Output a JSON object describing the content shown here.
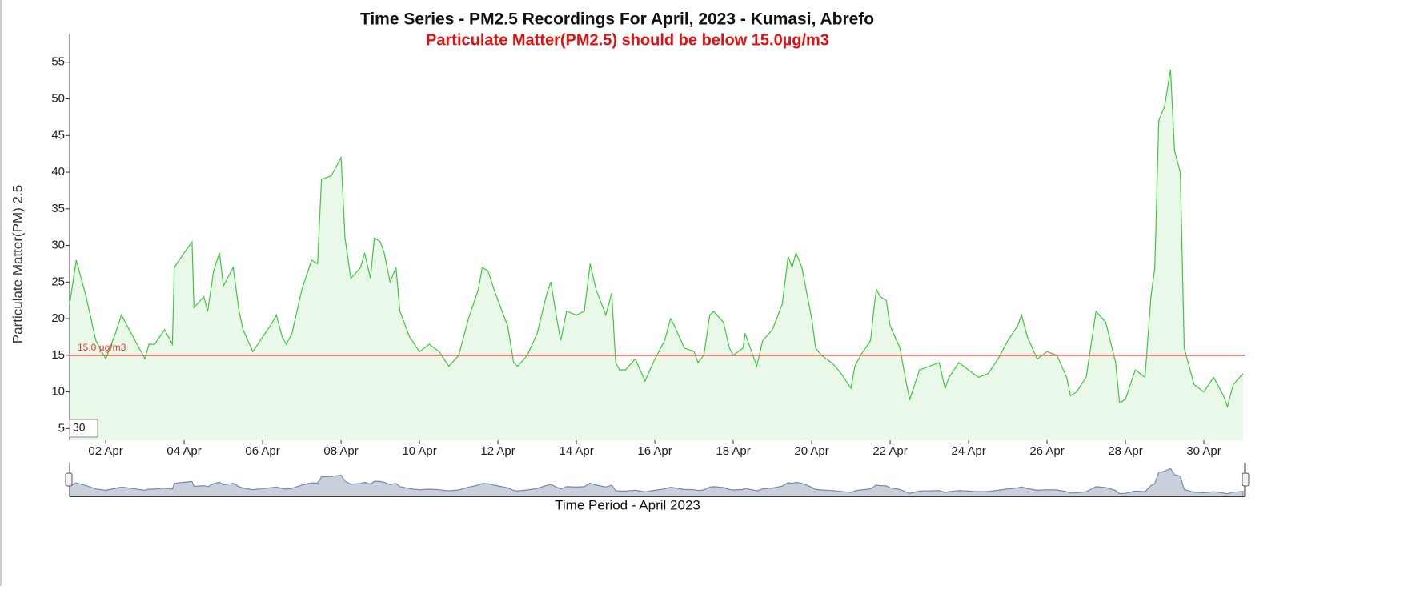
{
  "chart_data": {
    "type": "area",
    "title": "Time Series - PM2.5 Recordings For April, 2023 - Kumasi, Abrefo",
    "subtitle": "Particulate Matter(PM2.5) should be below 15.0µg/m3",
    "x_label": "Time Period - April 2023",
    "y_label": "Particulate Matter(PM) 2.5",
    "color": "#3ec83e",
    "fill_color": "#eaf8ea",
    "threshold": {
      "value": 15,
      "label": "15.0 µg/m3",
      "color": "#e53935"
    },
    "range_input": "30",
    "xlim": [
      1.08,
      31.04
    ],
    "xticks": [
      {
        "value": 2,
        "label": "02 Apr"
      },
      {
        "value": 4,
        "label": "04 Apr"
      },
      {
        "value": 6,
        "label": "06 Apr"
      },
      {
        "value": 8,
        "label": "08 Apr"
      },
      {
        "value": 10,
        "label": "10 Apr"
      },
      {
        "value": 12,
        "label": "12 Apr"
      },
      {
        "value": 14,
        "label": "14 Apr"
      },
      {
        "value": 16,
        "label": "16 Apr"
      },
      {
        "value": 18,
        "label": "18 Apr"
      },
      {
        "value": 20,
        "label": "20 Apr"
      },
      {
        "value": 22,
        "label": "22 Apr"
      },
      {
        "value": 24,
        "label": "24 Apr"
      },
      {
        "value": 26,
        "label": "26 Apr"
      },
      {
        "value": 28,
        "label": "28 Apr"
      },
      {
        "value": 30,
        "label": "30 Apr"
      }
    ],
    "ylim": [
      3.4,
      58.8
    ],
    "yticks": [
      5,
      10,
      15,
      20,
      25,
      30,
      35,
      40,
      45,
      50,
      55
    ],
    "x": [
      1.08,
      1.25,
      1.5,
      1.75,
      2.0,
      2.25,
      2.4,
      2.5,
      2.75,
      3.0,
      3.1,
      3.25,
      3.5,
      3.7,
      3.75,
      4.0,
      4.2,
      4.25,
      4.5,
      4.6,
      4.75,
      4.9,
      5.0,
      5.25,
      5.4,
      5.5,
      5.75,
      6.0,
      6.25,
      6.35,
      6.5,
      6.6,
      6.75,
      7.0,
      7.25,
      7.4,
      7.5,
      7.75,
      7.9,
      8.0,
      8.1,
      8.25,
      8.5,
      8.6,
      8.75,
      8.85,
      9.0,
      9.1,
      9.25,
      9.4,
      9.5,
      9.75,
      10.0,
      10.25,
      10.5,
      10.75,
      11.0,
      11.25,
      11.5,
      11.6,
      11.75,
      11.9,
      12.0,
      12.25,
      12.4,
      12.5,
      12.75,
      13.0,
      13.25,
      13.35,
      13.5,
      13.6,
      13.75,
      14.0,
      14.2,
      14.35,
      14.5,
      14.75,
      14.9,
      15.0,
      15.1,
      15.25,
      15.5,
      15.75,
      16.0,
      16.25,
      16.4,
      16.5,
      16.75,
      17.0,
      17.1,
      17.25,
      17.4,
      17.5,
      17.75,
      17.9,
      18.0,
      18.25,
      18.3,
      18.5,
      18.6,
      18.75,
      19.0,
      19.25,
      19.4,
      19.5,
      19.6,
      19.75,
      20.0,
      20.1,
      20.25,
      20.5,
      20.6,
      20.75,
      21.0,
      21.1,
      21.25,
      21.5,
      21.6,
      21.65,
      21.75,
      21.9,
      22.0,
      22.25,
      22.4,
      22.5,
      22.75,
      23.0,
      23.25,
      23.4,
      23.5,
      23.75,
      24.0,
      24.25,
      24.5,
      24.75,
      25.0,
      25.25,
      25.35,
      25.5,
      25.75,
      26.0,
      26.25,
      26.5,
      26.6,
      26.75,
      27.0,
      27.25,
      27.5,
      27.75,
      27.85,
      28.0,
      28.25,
      28.5,
      28.65,
      28.75,
      28.85,
      29.0,
      29.15,
      29.25,
      29.4,
      29.5,
      29.75,
      30.0,
      30.25,
      30.5,
      30.6,
      30.75,
      31.0
    ],
    "values": [
      22,
      28,
      23,
      17,
      14.5,
      18,
      20.5,
      19.5,
      17,
      14.5,
      16.5,
      16.5,
      18.5,
      16.5,
      27,
      29,
      30.5,
      21.5,
      23,
      21,
      26.5,
      29,
      24.5,
      27,
      21,
      18.5,
      15.5,
      17.5,
      19.5,
      20.5,
      17.5,
      16.5,
      18,
      24,
      28,
      27.5,
      39,
      39.5,
      41,
      42,
      31,
      25.5,
      27,
      29,
      25.5,
      31,
      30.5,
      29,
      25,
      27,
      21,
      17.5,
      15.5,
      16.5,
      15.5,
      13.5,
      15,
      20,
      24,
      27,
      26.5,
      24,
      22.5,
      19,
      14,
      13.5,
      15,
      18,
      23.5,
      25,
      20,
      17,
      21,
      20.5,
      21,
      27.5,
      24,
      20.5,
      23.5,
      14,
      13,
      13,
      14.5,
      11.5,
      14.5,
      17,
      20,
      19,
      16,
      15.5,
      14,
      15,
      20.5,
      21,
      19.5,
      16,
      15,
      16,
      18,
      15,
      13.5,
      17,
      18.5,
      22,
      28.5,
      27,
      29,
      27,
      20,
      16,
      15,
      14,
      13.5,
      12.5,
      10.5,
      13.5,
      15,
      17,
      22,
      24,
      23,
      22.5,
      19,
      16,
      11.5,
      9,
      13,
      13.5,
      14,
      10.5,
      12,
      14,
      13,
      12,
      12.5,
      14.5,
      17,
      19,
      20.5,
      17.5,
      14.5,
      15.5,
      15,
      12,
      9.5,
      10,
      12,
      21,
      19.5,
      14,
      8.5,
      9,
      13,
      12,
      23,
      27,
      47,
      49,
      54,
      43,
      40,
      16,
      11,
      10,
      12,
      9.5,
      8,
      11,
      12.5
    ]
  }
}
